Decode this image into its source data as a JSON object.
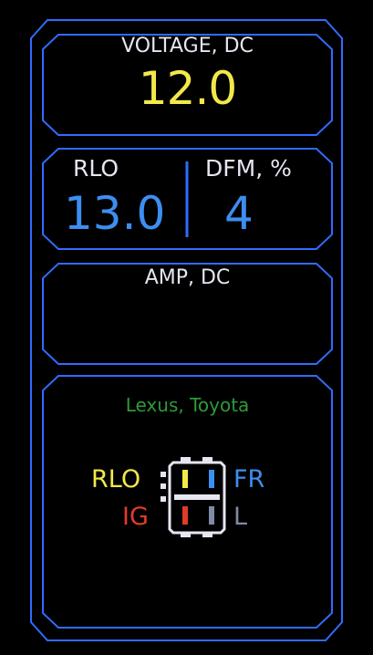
{
  "voltage": {
    "label": "VOLTAGE, DC",
    "value": "12.0"
  },
  "rlo": {
    "label": "RLO",
    "value": "13.0"
  },
  "dfm": {
    "label": "DFM, %",
    "value": "4"
  },
  "amp": {
    "label": "AMP, DC",
    "value": ""
  },
  "connector": {
    "brand": "Lexus, Toyota",
    "pins": {
      "rlo": "RLO",
      "fr": "FR",
      "ig": "IG",
      "l": "L"
    }
  },
  "colors": {
    "frame": "#2f6cff",
    "voltage_value": "#f3e84a",
    "reading_value": "#3d8ef0",
    "brand": "#2d9a3a",
    "pin_rlo": "#f3e84a",
    "pin_fr": "#3d8ef0",
    "pin_ig": "#e23a2a",
    "pin_l": "#7f8aa5"
  }
}
